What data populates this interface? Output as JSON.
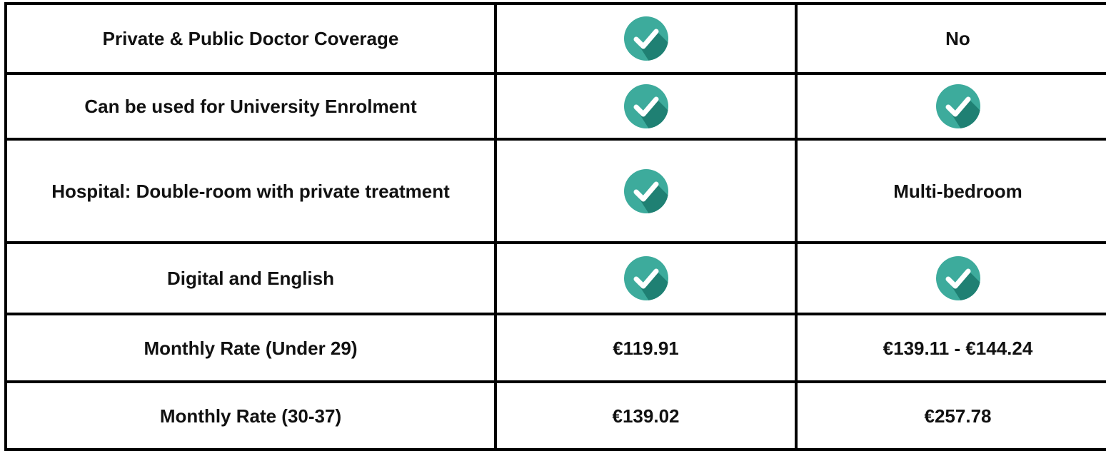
{
  "table": {
    "rows": [
      {
        "feature": "Private & Public Doctor Coverage",
        "plan_a": true,
        "plan_b": "No"
      },
      {
        "feature": "Can be used for University Enrolment",
        "plan_a": true,
        "plan_b": true
      },
      {
        "feature": "Hospital: Double-room with private treatment",
        "plan_a": true,
        "plan_b": "Multi-bedroom"
      },
      {
        "feature": "Digital and English",
        "plan_a": true,
        "plan_b": true
      },
      {
        "feature": "Monthly Rate (Under 29)",
        "plan_a": "€119.91",
        "plan_b": "€139.11 - €144.24"
      },
      {
        "feature": "Monthly Rate (30-37)",
        "plan_a": "€139.02",
        "plan_b": "€257.78"
      }
    ]
  }
}
